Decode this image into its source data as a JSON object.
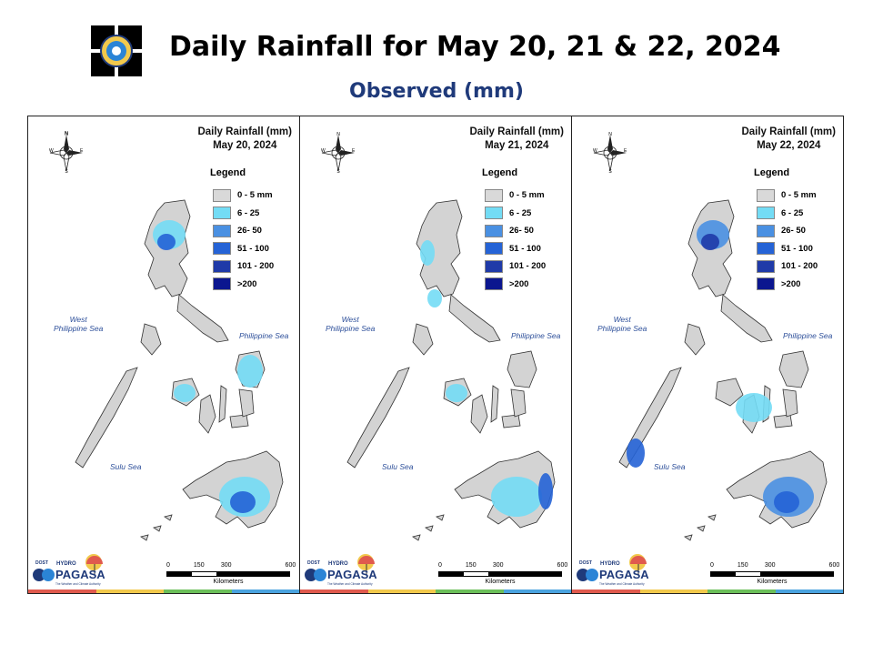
{
  "header": {
    "title": "Daily Rainfall for May 20, 21 & 22, 2024",
    "subtitle": "Observed (mm)"
  },
  "legend": {
    "heading": "Legend",
    "classes": [
      {
        "label": "0 - 5 mm",
        "color": "#d9d9d9"
      },
      {
        "label": "6 - 25",
        "color": "#73dcf5"
      },
      {
        "label": "26- 50",
        "color": "#4a90e2"
      },
      {
        "label": "51 - 100",
        "color": "#2563d6"
      },
      {
        "label": "101 - 200",
        "color": "#1f3aa8"
      },
      {
        "label": ">200",
        "color": "#0b168f"
      }
    ]
  },
  "panels": [
    {
      "title_line1": "Daily Rainfall (mm)",
      "title_line2": "May 20, 2024"
    },
    {
      "title_line1": "Daily Rainfall (mm)",
      "title_line2": "May 21, 2024"
    },
    {
      "title_line1": "Daily Rainfall (mm)",
      "title_line2": "May 22, 2024"
    }
  ],
  "map_labels": {
    "west_sea_line1": "West",
    "west_sea_line2": "Philippine Sea",
    "east_sea": "Philippine Sea",
    "south_sea": "Sulu Sea",
    "compass": {
      "n": "N",
      "s": "S",
      "e": "E",
      "w": "W"
    }
  },
  "scale_bar": {
    "ticks": [
      "0",
      "150",
      "300",
      "600"
    ],
    "unit": "Kilometers"
  },
  "branding": {
    "pagasa": "PAGASA",
    "hydro": "HYDRO",
    "dost": "DOST",
    "tagline": "The Weather and Climate Authority"
  },
  "colors": {
    "land": "#d3d3d3",
    "outline": "#333333",
    "bar": [
      "#e05a4e",
      "#f2c94c",
      "#6bbf59",
      "#4aa3df"
    ]
  },
  "rain_blobs": [
    [
      {
        "cls": 1,
        "region": "north-luzon"
      },
      {
        "cls": 3,
        "region": "north-luzon-core"
      },
      {
        "cls": 1,
        "region": "eastern-visayas"
      },
      {
        "cls": 1,
        "region": "western-visayas"
      },
      {
        "cls": 1,
        "region": "mindanao"
      },
      {
        "cls": 3,
        "region": "mindanao-core"
      }
    ],
    [
      {
        "cls": 1,
        "region": "north-luzon-west"
      },
      {
        "cls": 1,
        "region": "central-luzon"
      },
      {
        "cls": 1,
        "region": "western-visayas"
      },
      {
        "cls": 1,
        "region": "mindanao"
      },
      {
        "cls": 3,
        "region": "east-mindanao"
      }
    ],
    [
      {
        "cls": 2,
        "region": "north-luzon"
      },
      {
        "cls": 4,
        "region": "north-luzon-core"
      },
      {
        "cls": 3,
        "region": "palawan"
      },
      {
        "cls": 1,
        "region": "visayas"
      },
      {
        "cls": 2,
        "region": "mindanao"
      },
      {
        "cls": 3,
        "region": "mindanao-core"
      }
    ]
  ]
}
